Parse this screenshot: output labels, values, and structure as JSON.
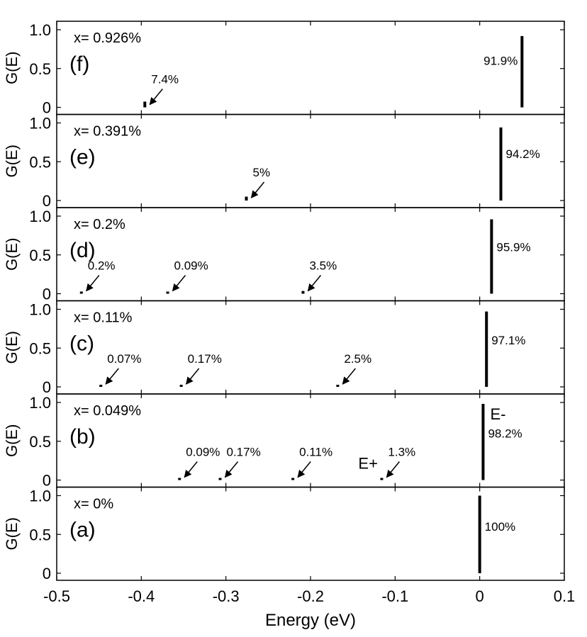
{
  "chart_data": {
    "type": "bar",
    "xlabel": "Energy (eV)",
    "ylabel": "G(E)",
    "xlim": [
      -0.5,
      0.1
    ],
    "ylim": [
      0,
      1.0
    ],
    "grid": false,
    "x_ticks": [
      "-0.5",
      "-0.4",
      "-0.3",
      "-0.2",
      "-0.1",
      "0",
      "0.1"
    ],
    "y_ticks": [
      "0",
      "0.5",
      "1.0"
    ],
    "panels": [
      {
        "tag": "(f)",
        "x_label": "x= 0.926%",
        "peaks": [
          {
            "x": -0.395,
            "y": 0.074,
            "label": "7.4%"
          },
          {
            "x": 0.05,
            "y": 0.919,
            "label": "91.9%"
          }
        ],
        "annotations": []
      },
      {
        "tag": "(e)",
        "x_label": "x= 0.391%",
        "peaks": [
          {
            "x": -0.275,
            "y": 0.05,
            "label": "5%"
          },
          {
            "x": 0.025,
            "y": 0.942,
            "label": "94.2%"
          }
        ],
        "annotations": []
      },
      {
        "tag": "(d)",
        "x_label": "x= 0.2%",
        "peaks": [
          {
            "x": -0.47,
            "y": 0.002,
            "label": "0.2%"
          },
          {
            "x": -0.368,
            "y": 0.0009,
            "label": "0.09%"
          },
          {
            "x": -0.208,
            "y": 0.035,
            "label": "3.5%"
          },
          {
            "x": 0.014,
            "y": 0.959,
            "label": "95.9%"
          }
        ],
        "annotations": []
      },
      {
        "tag": "(c)",
        "x_label": "x= 0.11%",
        "peaks": [
          {
            "x": -0.447,
            "y": 0.0007,
            "label": "0.07%"
          },
          {
            "x": -0.352,
            "y": 0.0017,
            "label": "0.17%"
          },
          {
            "x": -0.167,
            "y": 0.025,
            "label": "2.5%"
          },
          {
            "x": 0.008,
            "y": 0.971,
            "label": "97.1%"
          }
        ],
        "annotations": []
      },
      {
        "tag": "(b)",
        "x_label": "x= 0.049%",
        "peaks": [
          {
            "x": -0.354,
            "y": 0.0009,
            "label": "0.09%"
          },
          {
            "x": -0.306,
            "y": 0.0017,
            "label": "0.17%"
          },
          {
            "x": -0.22,
            "y": 0.0011,
            "label": "0.11%"
          },
          {
            "x": -0.115,
            "y": 0.013,
            "label": "1.3%"
          },
          {
            "x": 0.004,
            "y": 0.982,
            "label": "98.2%"
          }
        ],
        "annotations": [
          "E-",
          "E+"
        ]
      },
      {
        "tag": "(a)",
        "x_label": "x= 0%",
        "peaks": [
          {
            "x": 0.0,
            "y": 1.0,
            "label": "100%"
          }
        ],
        "annotations": []
      }
    ]
  }
}
